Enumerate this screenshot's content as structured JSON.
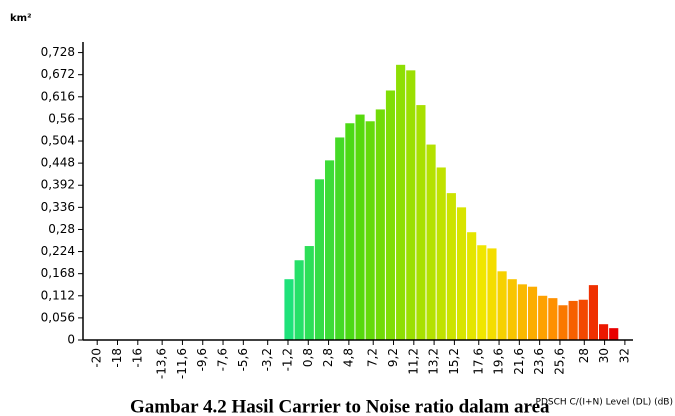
{
  "chart_data": {
    "type": "histogram",
    "ylabel": "km²",
    "xlabel": "PDSCH C/(I+N) Level (DL) (dB)",
    "caption": "Gambar 4.2 Hasil Carrier to Noise ratio dalam area",
    "bins": [
      -1.6,
      -0.6,
      0.4,
      1.4,
      2.4,
      3.4,
      4.4,
      5.4,
      6.4,
      7.4,
      8.4,
      9.4,
      10.4,
      11.4,
      12.4,
      13.4,
      14.4,
      15.4,
      16.4,
      17.4,
      18.4,
      19.4,
      20.4,
      21.4,
      22.4,
      23.4,
      24.4,
      25.4,
      26.4,
      27.4,
      28.4,
      29.4,
      30.4,
      31.4
    ],
    "values": [
      0.154,
      0.202,
      0.238,
      0.407,
      0.455,
      0.513,
      0.549,
      0.571,
      0.554,
      0.584,
      0.632,
      0.697,
      0.683,
      0.595,
      0.495,
      0.437,
      0.372,
      0.336,
      0.273,
      0.24,
      0.232,
      0.174,
      0.154,
      0.141,
      0.135,
      0.112,
      0.106,
      0.088,
      0.099,
      0.102,
      0.139,
      0.04,
      0.03
    ],
    "color_scale": [
      "#1ee27a",
      "#4fd80e",
      "#a6e000",
      "#f2e600",
      "#ff9a00",
      "#e80000"
    ],
    "xlim": [
      -21.4,
      32.8
    ],
    "xticks": [
      -20,
      -18,
      -16,
      {
        "value": -13.6,
        "label": "-13,6"
      },
      {
        "value": -11.6,
        "label": "-11,6"
      },
      {
        "value": -9.6,
        "label": "-9,6"
      },
      {
        "value": -7.6,
        "label": "-7,6"
      },
      {
        "value": -5.6,
        "label": "-5,6"
      },
      {
        "value": -3.2,
        "label": "-3,2"
      },
      {
        "value": -1.2,
        "label": "-1,2"
      },
      {
        "value": 0.8,
        "label": "0,8"
      },
      {
        "value": 2.8,
        "label": "2,8"
      },
      {
        "value": 4.8,
        "label": "4,8"
      },
      {
        "value": 7.2,
        "label": "7,2"
      },
      {
        "value": 9.2,
        "label": "9,2"
      },
      {
        "value": 11.2,
        "label": "11,2"
      },
      {
        "value": 13.2,
        "label": "13,2"
      },
      {
        "value": 15.2,
        "label": "15,2"
      },
      {
        "value": 17.6,
        "label": "17,6"
      },
      {
        "value": 19.6,
        "label": "19,6"
      },
      {
        "value": 21.6,
        "label": "21,6"
      },
      {
        "value": 23.6,
        "label": "23,6"
      },
      {
        "value": 25.6,
        "label": "25,6"
      },
      28,
      30,
      32
    ],
    "ylim": [
      0,
      0.77
    ],
    "yticks": [
      0,
      {
        "value": 0.056,
        "label": "0,056"
      },
      {
        "value": 0.112,
        "label": "0,112"
      },
      {
        "value": 0.168,
        "label": "0,168"
      },
      {
        "value": 0.224,
        "label": "0,224"
      },
      {
        "value": 0.28,
        "label": "0,28"
      },
      {
        "value": 0.336,
        "label": "0,336"
      },
      {
        "value": 0.392,
        "label": "0,392"
      },
      {
        "value": 0.448,
        "label": "0,448"
      },
      {
        "value": 0.504,
        "label": "0,504"
      },
      {
        "value": 0.56,
        "label": "0,56"
      },
      {
        "value": 0.616,
        "label": "0,616"
      },
      {
        "value": 0.672,
        "label": "0,672"
      },
      {
        "value": 0.728,
        "label": "0,728"
      }
    ]
  }
}
